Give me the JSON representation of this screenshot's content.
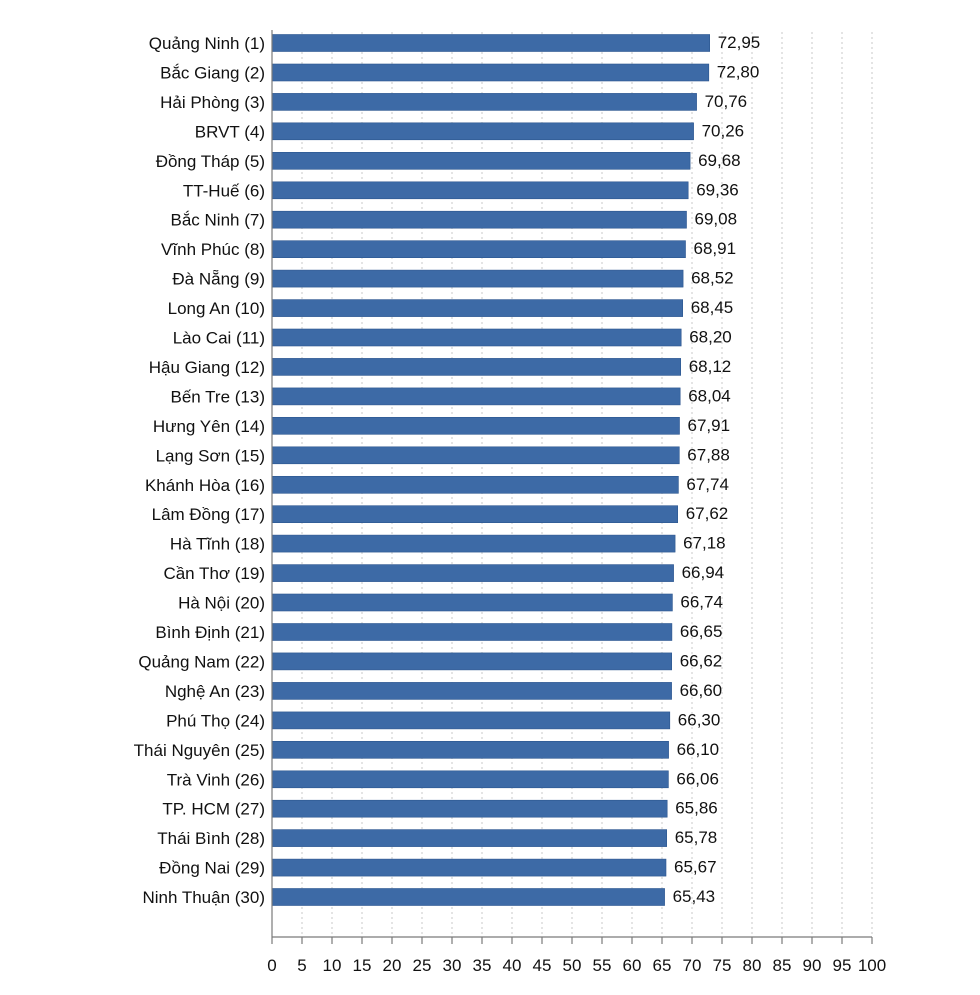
{
  "chart_data": {
    "type": "bar",
    "orientation": "horizontal",
    "categories": [
      "Quảng Ninh (1)",
      "Bắc Giang (2)",
      "Hải Phòng (3)",
      "BRVT (4)",
      "Đồng Tháp (5)",
      "TT-Huế (6)",
      "Bắc Ninh (7)",
      "Vĩnh Phúc (8)",
      "Đà Nẵng (9)",
      "Long An (10)",
      "Lào Cai (11)",
      "Hậu Giang (12)",
      "Bến Tre (13)",
      "Hưng Yên (14)",
      "Lạng Sơn (15)",
      "Khánh Hòa (16)",
      "Lâm Đồng (17)",
      "Hà Tĩnh (18)",
      "Cần Thơ (19)",
      "Hà Nội (20)",
      "Bình Định (21)",
      "Quảng Nam (22)",
      "Nghệ An (23)",
      "Phú Thọ (24)",
      "Thái Nguyên (25)",
      "Trà Vinh (26)",
      "TP. HCM (27)",
      "Thái Bình (28)",
      "Đồng Nai (29)",
      "Ninh Thuận (30)"
    ],
    "values": [
      72.95,
      72.8,
      70.76,
      70.26,
      69.68,
      69.36,
      69.08,
      68.91,
      68.52,
      68.45,
      68.2,
      68.12,
      68.04,
      67.91,
      67.88,
      67.74,
      67.62,
      67.18,
      66.94,
      66.74,
      66.65,
      66.62,
      66.6,
      66.3,
      66.1,
      66.06,
      65.86,
      65.78,
      65.67,
      65.43
    ],
    "value_labels": [
      "72,95",
      "72,80",
      "70,76",
      "70,26",
      "69,68",
      "69,36",
      "69,08",
      "68,91",
      "68,52",
      "68,45",
      "68,20",
      "68,12",
      "68,04",
      "67,91",
      "67,88",
      "67,74",
      "67,62",
      "67,18",
      "66,94",
      "66,74",
      "66,65",
      "66,62",
      "66,60",
      "66,30",
      "66,10",
      "66,06",
      "65,86",
      "65,78",
      "65,67",
      "65,43"
    ],
    "xlim": [
      0,
      100
    ],
    "x_ticks": [
      "0",
      "5",
      "10",
      "15",
      "20",
      "25",
      "30",
      "35",
      "40",
      "45",
      "50",
      "55",
      "60",
      "65",
      "70",
      "75",
      "80",
      "85",
      "90",
      "95",
      "100"
    ],
    "gridlines": "vertical-dotted",
    "legend": "none",
    "title": "",
    "xlabel": "",
    "ylabel": "",
    "colors": {
      "bar": "#3d6aa6",
      "bar_edge": "#2c568f",
      "grid": "#c8c8c8",
      "axis": "#7a7a7a",
      "text": "#111111"
    }
  }
}
